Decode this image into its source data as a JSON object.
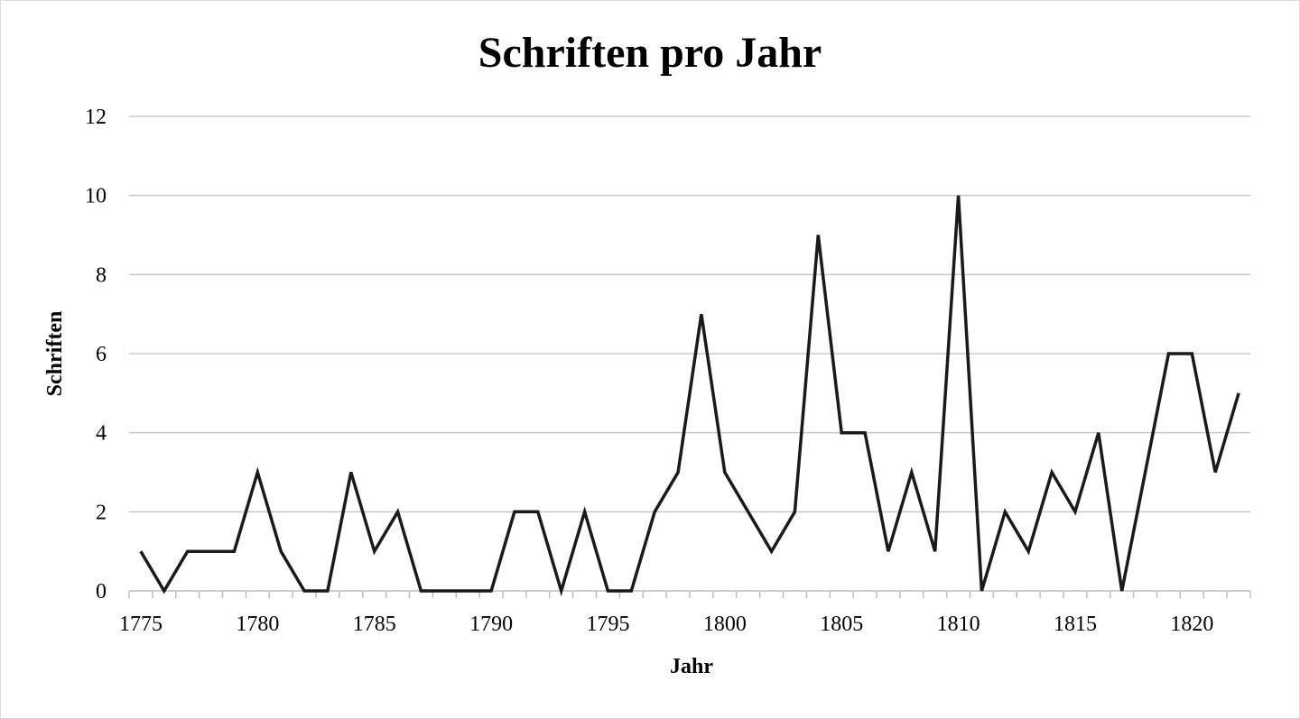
{
  "chart_data": {
    "type": "line",
    "title": "Schriften pro Jahr",
    "xlabel": "Jahr",
    "ylabel": "Schriften",
    "ylim": [
      0,
      12
    ],
    "yticks": [
      0,
      2,
      4,
      6,
      8,
      10,
      12
    ],
    "xtick_labels": [
      "1775",
      "1780",
      "1785",
      "1790",
      "1795",
      "1800",
      "1805",
      "1810",
      "1815",
      "1820"
    ],
    "grid": "horizontal",
    "legend": "none",
    "line_color": "#1a1a1a",
    "grid_color": "#c8c8c8",
    "x": [
      1775,
      1776,
      1777,
      1778,
      1779,
      1780,
      1781,
      1782,
      1783,
      1784,
      1785,
      1786,
      1787,
      1788,
      1789,
      1790,
      1791,
      1792,
      1793,
      1794,
      1795,
      1796,
      1797,
      1798,
      1799,
      1800,
      1801,
      1802,
      1803,
      1804,
      1805,
      1806,
      1807,
      1808,
      1809,
      1810,
      1811,
      1812,
      1813,
      1814,
      1815,
      1816,
      1817,
      1818,
      1819,
      1820,
      1821,
      1822
    ],
    "series": [
      {
        "name": "Schriften",
        "values": [
          1,
          0,
          1,
          1,
          1,
          3,
          1,
          0,
          0,
          3,
          1,
          2,
          0,
          0,
          0,
          0,
          2,
          2,
          0,
          2,
          0,
          0,
          2,
          3,
          7,
          3,
          2,
          1,
          2,
          9,
          4,
          4,
          1,
          3,
          1,
          10,
          0,
          2,
          1,
          3,
          2,
          4,
          0,
          3,
          6,
          6,
          3,
          5
        ]
      }
    ]
  }
}
